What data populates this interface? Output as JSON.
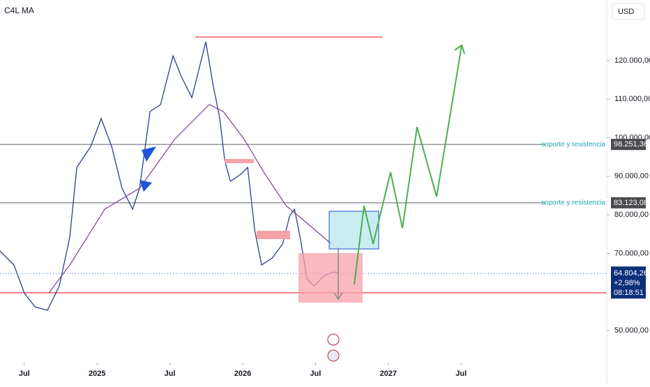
{
  "chart_data": {
    "type": "line",
    "title": "C4L MA",
    "currency": "USD",
    "xlim": [
      4,
      54
    ],
    "ylim": [
      41700,
      135700
    ],
    "xticks": [
      {
        "value": 6,
        "label": "Jul"
      },
      {
        "value": 12,
        "label": "2025"
      },
      {
        "value": 18,
        "label": "Jul"
      },
      {
        "value": 24,
        "label": "2026"
      },
      {
        "value": 30,
        "label": "Jul"
      },
      {
        "value": 36,
        "label": "2027"
      },
      {
        "value": 42,
        "label": "Jul"
      }
    ],
    "yticks": [
      {
        "value": 50000,
        "label": "50.000,00"
      },
      {
        "value": 70000,
        "label": "70.000,00"
      },
      {
        "value": 80000,
        "label": "80.000,00"
      },
      {
        "value": 90000,
        "label": "90.000,00"
      },
      {
        "value": 100000,
        "label": "100.000,00"
      },
      {
        "value": 110000,
        "label": "110.000,00"
      },
      {
        "value": 120000,
        "label": "120.000,00"
      }
    ],
    "series": [
      {
        "color": "#2b3f8f",
        "x": [
          4.0,
          5.15,
          6.0,
          6.88,
          7.91,
          8.89,
          9.75,
          10.33,
          11.48,
          12.34,
          13.2,
          14.06,
          14.93,
          15.5,
          16.36,
          17.23,
          18.26,
          18.95,
          19.81,
          20.96,
          21.54,
          22.11,
          22.52,
          22.98,
          23.84,
          24.41,
          24.99,
          25.56,
          26.43,
          27.29,
          27.86,
          28.27,
          28.73,
          29.3,
          29.88,
          30.74,
          31.49,
          31.89
        ],
        "values": [
          70620,
          67010,
          59780,
          56160,
          55260,
          61580,
          74240,
          92320,
          97740,
          104970,
          97740,
          86890,
          81470,
          86890,
          106780,
          108580,
          121240,
          115810,
          110390,
          124850,
          114010,
          104970,
          94120,
          88700,
          90510,
          92320,
          76050,
          67010,
          68820,
          72430,
          79660,
          81470,
          74240,
          63390,
          61580,
          64300,
          65200,
          64804.26
        ]
      },
      {
        "color": "#7e3f98",
        "x": [
          8.03,
          9.75,
          12.63,
          15.5,
          18.38,
          21.25,
          22.4,
          24.13,
          25.85,
          27.58,
          29.3,
          31.32
        ],
        "values": [
          59780,
          67010,
          81470,
          86890,
          99550,
          108580,
          106780,
          99550,
          90510,
          82370,
          77850,
          72430
        ]
      }
    ],
    "levels": [
      {
        "value": 98251.36,
        "label": "98.251,36",
        "text": "soporte y resistencia"
      },
      {
        "value": 83123.08,
        "label": "83.123,08",
        "text": "soporte y resistencia"
      }
    ],
    "red_lines": [
      {
        "value": 59800,
        "from": 4,
        "to": 54
      },
      {
        "value": 126100,
        "from": 20.1,
        "to": 35.5
      }
    ],
    "last_price": {
      "value": 64804.26,
      "label": "64.804,26"
    },
    "change": "+2,98%",
    "countdown": "08:18:51"
  }
}
